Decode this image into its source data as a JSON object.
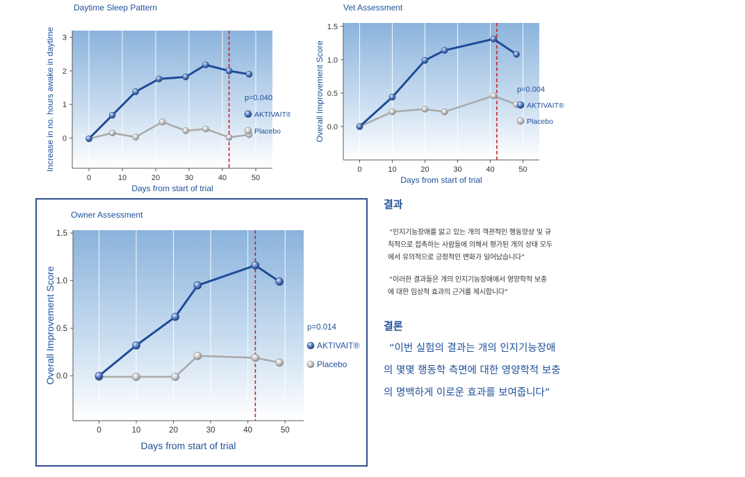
{
  "chart_data": [
    {
      "id": "sleep",
      "type": "line",
      "title": "Daytime Sleep Pattern",
      "xlabel": "Days from start of trial",
      "ylabel": "Increase in no. hours awake in daytime",
      "xlim": [
        -5,
        55
      ],
      "ylim": [
        -0.9,
        3.2
      ],
      "xticks": [
        0,
        10,
        20,
        30,
        40,
        50
      ],
      "yticks": [
        0,
        1,
        2,
        3
      ],
      "ytick_labels": [
        "0",
        "1",
        "2",
        "3"
      ],
      "marker_day": 42,
      "p_value": "p=0.040",
      "series": [
        {
          "name": "AKTIVAIT®",
          "color": "#1e4a96",
          "x": [
            0,
            7,
            14,
            21,
            29,
            35,
            42,
            48
          ],
          "y": [
            -0.02,
            0.68,
            1.38,
            1.76,
            1.82,
            2.18,
            2.0,
            1.9
          ]
        },
        {
          "name": "Placebo",
          "color": "#aaaaaa",
          "x": [
            0,
            7,
            14,
            22,
            29,
            35,
            42,
            48
          ],
          "y": [
            -0.02,
            0.15,
            0.03,
            0.48,
            0.22,
            0.27,
            0.02,
            0.1
          ]
        }
      ]
    },
    {
      "id": "vet",
      "type": "line",
      "title": "Vet Assessment",
      "xlabel": "Days from start of trial",
      "ylabel": "Overall Improvement Score",
      "xlim": [
        -5,
        55
      ],
      "ylim": [
        -0.5,
        1.55
      ],
      "xticks": [
        0,
        10,
        20,
        30,
        40,
        50
      ],
      "yticks": [
        0,
        0.5,
        1.0,
        1.5
      ],
      "ytick_labels": [
        "0.0",
        "0.5",
        "1.0",
        "1.5"
      ],
      "marker_day": 42,
      "p_value": "p=0.004",
      "series": [
        {
          "name": "AKTIVAIT®",
          "color": "#1e4a96",
          "x": [
            0,
            10,
            20,
            26,
            41,
            48
          ],
          "y": [
            0.0,
            0.44,
            0.99,
            1.14,
            1.31,
            1.08
          ]
        },
        {
          "name": "Placebo",
          "color": "#aaaaaa",
          "x": [
            0,
            10,
            20,
            26,
            41,
            48
          ],
          "y": [
            0.0,
            0.22,
            0.26,
            0.22,
            0.46,
            0.33
          ]
        }
      ]
    },
    {
      "id": "owner",
      "type": "line",
      "title": "Owner Assessment",
      "xlabel": "Days from start of trial",
      "ylabel": "Overall Improvement Score",
      "xlim": [
        -7,
        55
      ],
      "ylim": [
        -0.47,
        1.53
      ],
      "xticks": [
        0,
        10,
        20,
        30,
        40,
        50
      ],
      "yticks": [
        0,
        0.5,
        1.0,
        1.5
      ],
      "ytick_labels": [
        "0.0",
        "0.5",
        "1.0",
        "1.5"
      ],
      "marker_day": 42,
      "p_value": "p=0.014",
      "series": [
        {
          "name": "AKTIVAIT®",
          "color": "#1e4a96",
          "x": [
            0,
            10,
            20.5,
            26.5,
            42,
            48.5
          ],
          "y": [
            0.0,
            0.32,
            0.62,
            0.95,
            1.16,
            0.99
          ]
        },
        {
          "name": "Placebo",
          "color": "#aaaaaa",
          "x": [
            0,
            10,
            20.5,
            26.5,
            42,
            48.5
          ],
          "y": [
            -0.01,
            -0.01,
            -0.01,
            0.21,
            0.19,
            0.14
          ]
        }
      ]
    }
  ],
  "korean": {
    "result_heading": "결과",
    "result_p1": [
      "“인지기능장애를 앓고 있는 개의 객관적인 행동양상 및 규",
      "칙적으로 접촉하는 사람들에 의해서 평가된 개의 상태 모두",
      "에서 유의적으로 긍정적인 변화가 일어났습니다”"
    ],
    "result_p2": [
      "“이러한 결과들은 개의 인지기능장애에서 영양학적 보충",
      "에 대한 임상적 효과의 근거를 제시합니다”"
    ],
    "conclusion_heading": "결론",
    "conclusion_lines": [
      "“이번 실험의 결과는 개의 인지기능장애",
      "의 몇몇 행동학 측면에 대한 영양학적 보충",
      "의 명백하게 이로운 효과를 보여줍니다”"
    ]
  },
  "colors": {
    "aktivait": "#1e4a96",
    "placebo": "#aaaaaa",
    "marker_line": "#cc2222",
    "accent_text": "#1f4f9a",
    "frame": "#2e4f8f"
  }
}
